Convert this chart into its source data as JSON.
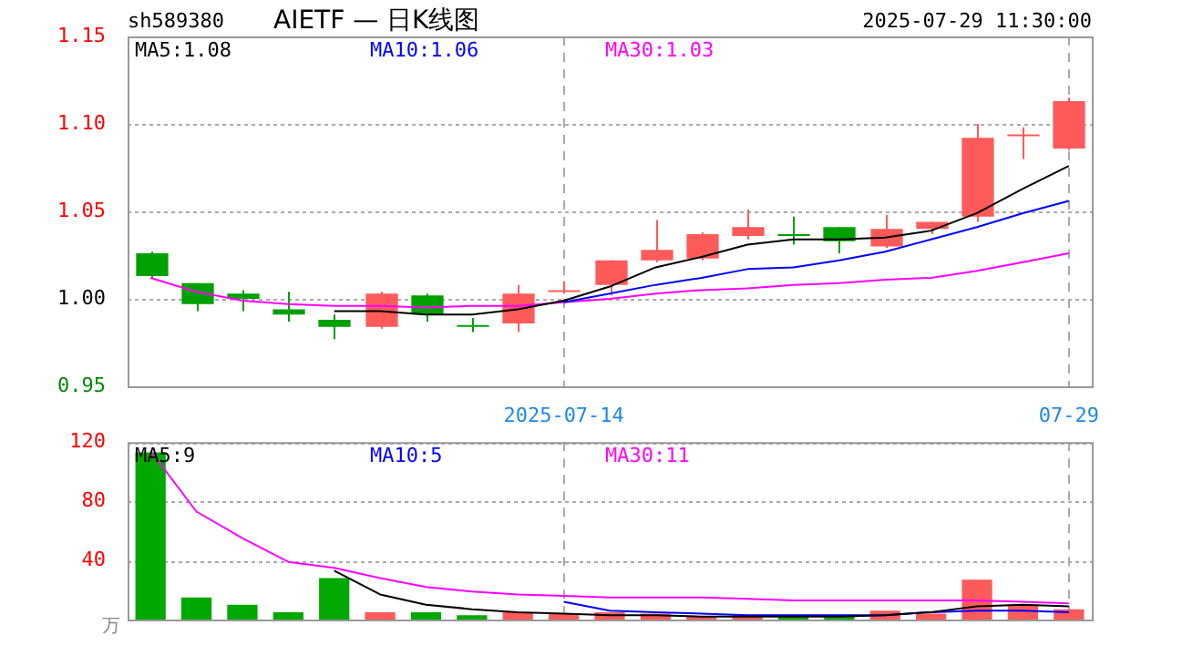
{
  "chart_data": [
    {
      "type": "candlestick",
      "title": "AIETF — 日K线图",
      "annotations": [
        "sh589380",
        "2025-07-29 11:30:00"
      ],
      "categories": [
        null,
        null,
        null,
        null,
        null,
        null,
        null,
        null,
        null,
        "2025-07-14",
        null,
        null,
        null,
        null,
        null,
        null,
        null,
        null,
        null,
        null,
        "07-29"
      ],
      "ohlc": [
        [
          1.026,
          1.027,
          1.012,
          1.013
        ],
        [
          1.009,
          1.009,
          0.993,
          0.997
        ],
        [
          1.003,
          1.005,
          0.993,
          1.0
        ],
        [
          0.994,
          1.004,
          0.987,
          0.991
        ],
        [
          0.988,
          0.991,
          0.977,
          0.984
        ],
        [
          0.984,
          1.004,
          0.983,
          1.003
        ],
        [
          1.002,
          1.003,
          0.987,
          0.991
        ],
        [
          0.985,
          0.989,
          0.981,
          0.984
        ],
        [
          0.986,
          1.008,
          0.981,
          1.003
        ],
        [
          1.004,
          1.01,
          1.003,
          1.005
        ],
        [
          1.008,
          1.022,
          1.002,
          1.022
        ],
        [
          1.022,
          1.045,
          1.021,
          1.028
        ],
        [
          1.023,
          1.038,
          1.022,
          1.037
        ],
        [
          1.036,
          1.051,
          1.034,
          1.041
        ],
        [
          1.037,
          1.047,
          1.031,
          1.036
        ],
        [
          1.041,
          1.041,
          1.026,
          1.033
        ],
        [
          1.03,
          1.048,
          1.029,
          1.04
        ],
        [
          1.04,
          1.044,
          1.037,
          1.044
        ],
        [
          1.047,
          1.1,
          1.044,
          1.092
        ],
        [
          1.093,
          1.098,
          1.08,
          1.094
        ],
        [
          1.086,
          1.115,
          1.085,
          1.113
        ]
      ],
      "series": [
        {
          "name": "MA5:1.08",
          "type": "line",
          "color": "#000000",
          "values": [
            null,
            null,
            null,
            null,
            0.993,
            0.993,
            0.991,
            0.991,
            0.994,
            0.999,
            1.007,
            1.018,
            1.024,
            1.031,
            1.034,
            1.034,
            1.035,
            1.039,
            1.049,
            1.063,
            1.076
          ]
        },
        {
          "name": "MA10:1.06",
          "type": "line",
          "color": "#0000ff",
          "values": [
            null,
            null,
            null,
            null,
            null,
            null,
            null,
            null,
            null,
            0.998,
            1.003,
            1.008,
            1.012,
            1.017,
            1.018,
            1.022,
            1.027,
            1.034,
            1.041,
            1.049,
            1.056
          ]
        },
        {
          "name": "MA30:1.03",
          "type": "line",
          "color": "#ff00ff",
          "values": [
            1.012,
            1.004,
            0.999,
            0.997,
            0.996,
            0.996,
            0.995,
            0.996,
            0.996,
            0.998,
            1.0,
            1.003,
            1.005,
            1.006,
            1.008,
            1.009,
            1.011,
            1.012,
            1.016,
            1.021,
            1.026
          ]
        }
      ],
      "ylim": [
        0.95,
        1.15
      ],
      "yticks": [
        {
          "value": 0.95,
          "label": "0.95"
        },
        {
          "value": 1,
          "label": "1.00"
        },
        {
          "value": 1.05,
          "label": "1.05"
        },
        {
          "value": 1.1,
          "label": "1.10"
        },
        {
          "value": 1.15,
          "label": "1.15"
        }
      ],
      "grid": true,
      "legend": "top",
      "marker": "none"
    },
    {
      "type": "bar",
      "ylabel": "万",
      "categories": [
        null,
        null,
        null,
        null,
        null,
        null,
        null,
        null,
        null,
        null,
        null,
        null,
        null,
        null,
        null,
        null,
        null,
        null,
        null,
        null,
        null
      ],
      "series": [
        {
          "type": "bar",
          "colors": [
            "#00a800",
            "#00a800",
            "#00a800",
            "#00a800",
            "#00a800",
            "#ff5a5a",
            "#00a800",
            "#00a800",
            "#ff5a5a",
            "#ff5a5a",
            "#ff5a5a",
            "#ff5a5a",
            "#ff5a5a",
            "#ff5a5a",
            "#00a800",
            "#00a800",
            "#ff5a5a",
            "#ff5a5a",
            "#ff5a5a",
            "#ff5a5a",
            "#ff5a5a"
          ],
          "values": [
            113,
            15,
            10,
            5,
            28,
            5,
            5,
            3,
            5,
            4,
            5,
            4,
            2,
            3,
            3,
            2,
            6,
            4,
            27,
            10,
            7
          ]
        },
        {
          "name": "MA5:9",
          "type": "line",
          "color": "#000000",
          "values": [
            null,
            null,
            null,
            null,
            33,
            17,
            10,
            7,
            5,
            4,
            3,
            3,
            2,
            2,
            2,
            2,
            3,
            5,
            9,
            10,
            9
          ]
        },
        {
          "name": "MA10:5",
          "type": "line",
          "color": "#0000ff",
          "values": [
            null,
            null,
            null,
            null,
            null,
            null,
            null,
            null,
            null,
            12,
            6,
            5,
            4,
            3,
            3,
            3,
            3,
            5,
            6,
            6,
            5
          ]
        },
        {
          "name": "MA30:11",
          "type": "line",
          "color": "#ff00ff",
          "values": [
            114,
            73,
            55,
            39,
            35,
            28,
            22,
            19,
            17,
            16,
            15,
            15,
            15,
            14,
            13,
            13,
            13,
            13,
            13,
            12,
            11
          ]
        }
      ],
      "ylim": [
        0,
        120
      ],
      "yticks": [
        40,
        80,
        120
      ],
      "grid": true,
      "legend": "top",
      "marker": "none",
      "tick_labels": "y"
    }
  ]
}
